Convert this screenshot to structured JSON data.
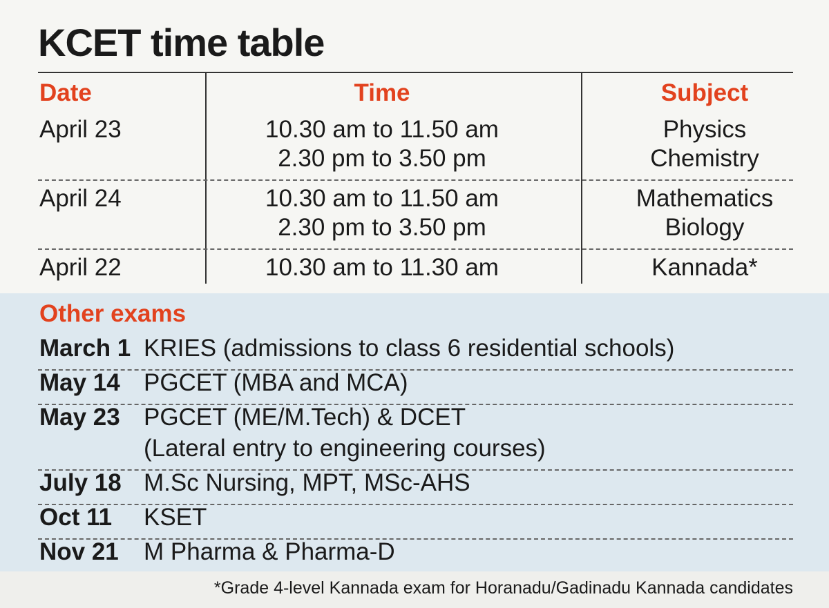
{
  "title": "KCET time table",
  "table": {
    "headers": [
      "Date",
      "Time",
      "Subject"
    ],
    "rows": [
      {
        "date": "April 23",
        "times": [
          "10.30 am to 11.50 am",
          "2.30 pm to 3.50 pm"
        ],
        "subjects": [
          "Physics",
          "Chemistry"
        ]
      },
      {
        "date": "April 24",
        "times": [
          "10.30 am to 11.50 am",
          "2.30 pm to 3.50 pm"
        ],
        "subjects": [
          "Mathematics",
          "Biology"
        ]
      },
      {
        "date": "April 22",
        "times": [
          "10.30 am to 11.30 am"
        ],
        "subjects": [
          "Kannada*"
        ]
      }
    ]
  },
  "other_exams": {
    "title": "Other exams",
    "rows": [
      {
        "date": "March 1",
        "lines": [
          "KRIES (admissions to class 6 residential schools)"
        ]
      },
      {
        "date": "May 14",
        "lines": [
          "PGCET (MBA and MCA)"
        ]
      },
      {
        "date": "May 23",
        "lines": [
          "PGCET (ME/M.Tech) & DCET",
          "(Lateral entry to engineering courses)"
        ]
      },
      {
        "date": "July 18",
        "lines": [
          "M.Sc Nursing, MPT, MSc-AHS"
        ]
      },
      {
        "date": "Oct 11",
        "lines": [
          "KSET"
        ]
      },
      {
        "date": "Nov 21",
        "lines": [
          "M Pharma & Pharma-D"
        ]
      }
    ]
  },
  "footnote": "*Grade 4-level Kannada exam for Horanadu/Gadinadu Kannada candidates"
}
